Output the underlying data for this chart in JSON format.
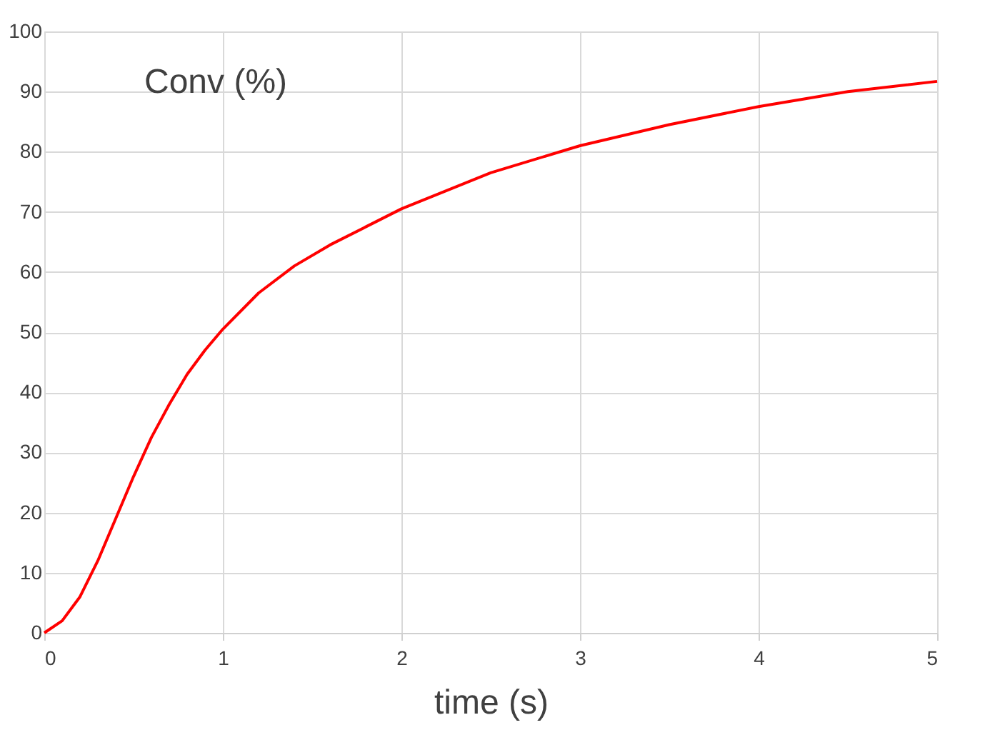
{
  "chart_data": {
    "type": "line",
    "xlabel": "time (s)",
    "ylabel": "Conv (%)",
    "x": [
      0,
      0.1,
      0.2,
      0.3,
      0.4,
      0.5,
      0.6,
      0.7,
      0.8,
      0.9,
      1.0,
      1.2,
      1.4,
      1.6,
      1.8,
      2.0,
      2.5,
      3.0,
      3.5,
      4.0,
      4.5,
      5.0
    ],
    "series": [
      {
        "color": "#ff0000",
        "values": [
          0,
          2,
          6,
          12,
          19,
          26,
          32.5,
          38,
          43,
          47,
          50.5,
          56.5,
          61,
          64.5,
          67.5,
          70.5,
          76.5,
          81,
          84.5,
          87.5,
          90,
          91.7
        ]
      }
    ],
    "xlim": [
      0,
      5
    ],
    "xticks": [
      0,
      1,
      2,
      3,
      4,
      5
    ],
    "ylim": [
      0,
      100
    ],
    "yticks": [
      0,
      10,
      20,
      30,
      40,
      50,
      60,
      70,
      80,
      90,
      100
    ],
    "grid": true,
    "marker": "none",
    "line_style": "solid"
  }
}
